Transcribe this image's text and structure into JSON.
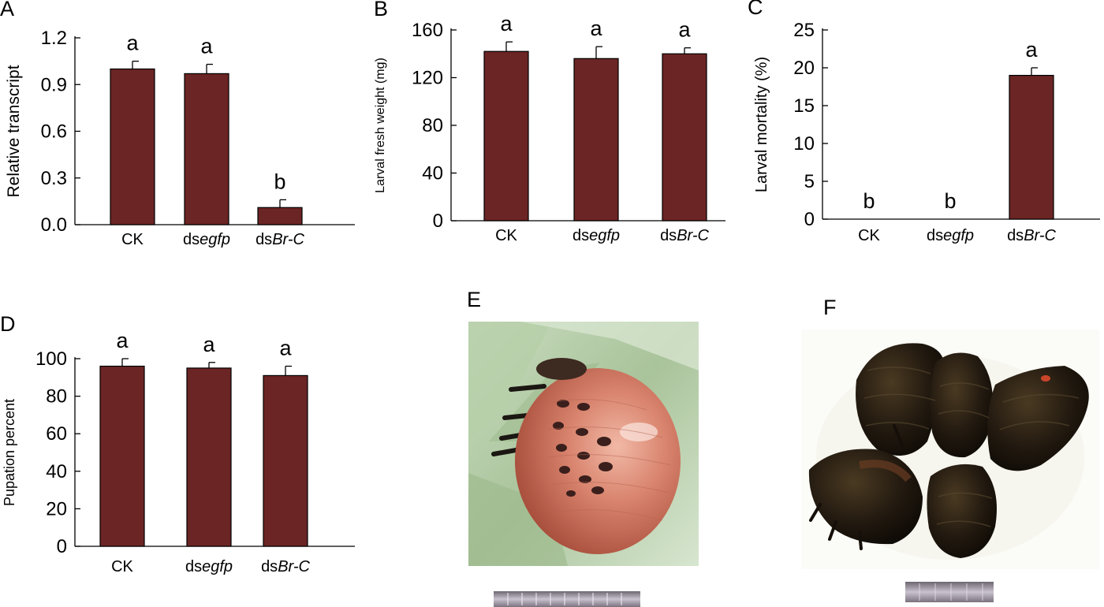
{
  "bar_color": "#6b2524",
  "panels": {
    "E": {
      "letter": "E"
    },
    "F": {
      "letter": "F"
    }
  },
  "chart_data": [
    {
      "panel": "A",
      "type": "bar",
      "ylabel": "Relative transcript",
      "categories": [
        {
          "prefix": "CK",
          "italic": ""
        },
        {
          "prefix": "ds",
          "italic": "egfp"
        },
        {
          "prefix": "ds",
          "italic": "Br-C"
        }
      ],
      "values": [
        1.0,
        0.97,
        0.11
      ],
      "errors": [
        0.05,
        0.06,
        0.05
      ],
      "letters": [
        "a",
        "a",
        "b"
      ],
      "ylim": [
        0,
        1.2
      ],
      "yticks": [
        0,
        0.3,
        0.6,
        0.9,
        1.2
      ],
      "ytick_labels": [
        "0.0",
        "0.3",
        "0.6",
        "0.9",
        "1.2"
      ]
    },
    {
      "panel": "B",
      "type": "bar",
      "ylabel": "Larval fresh weight (mg)",
      "categories": [
        {
          "prefix": "CK",
          "italic": ""
        },
        {
          "prefix": "ds",
          "italic": "egfp"
        },
        {
          "prefix": "ds",
          "italic": "Br-C"
        }
      ],
      "values": [
        142,
        136,
        140
      ],
      "errors": [
        8,
        10,
        5
      ],
      "letters": [
        "a",
        "a",
        "a"
      ],
      "ylim": [
        0,
        160
      ],
      "yticks": [
        0,
        40,
        80,
        120,
        160
      ],
      "ytick_labels": [
        "0",
        "40",
        "80",
        "120",
        "160"
      ]
    },
    {
      "panel": "C",
      "type": "bar",
      "ylabel": "Larval mortality (%)",
      "categories": [
        {
          "prefix": "CK",
          "italic": ""
        },
        {
          "prefix": "ds",
          "italic": "egfp"
        },
        {
          "prefix": "ds",
          "italic": "Br-C"
        }
      ],
      "values": [
        0,
        0,
        19
      ],
      "errors": [
        0,
        0,
        1
      ],
      "letters": [
        "b",
        "b",
        "a"
      ],
      "ylim": [
        0,
        25
      ],
      "yticks": [
        0,
        5,
        10,
        15,
        20,
        25
      ],
      "ytick_labels": [
        "0",
        "5",
        "10",
        "15",
        "20",
        "25"
      ]
    },
    {
      "panel": "D",
      "type": "bar",
      "ylabel": "Pupation percent",
      "categories": [
        {
          "prefix": "CK",
          "italic": ""
        },
        {
          "prefix": "ds",
          "italic": "egfp"
        },
        {
          "prefix": "ds",
          "italic": "Br-C"
        }
      ],
      "values": [
        96,
        95,
        91
      ],
      "errors": [
        4,
        3,
        5
      ],
      "letters": [
        "a",
        "a",
        "a"
      ],
      "ylim": [
        0,
        100
      ],
      "yticks": [
        0,
        20,
        40,
        60,
        80,
        100
      ],
      "ytick_labels": [
        "0",
        "20",
        "40",
        "60",
        "80",
        "100"
      ]
    }
  ]
}
